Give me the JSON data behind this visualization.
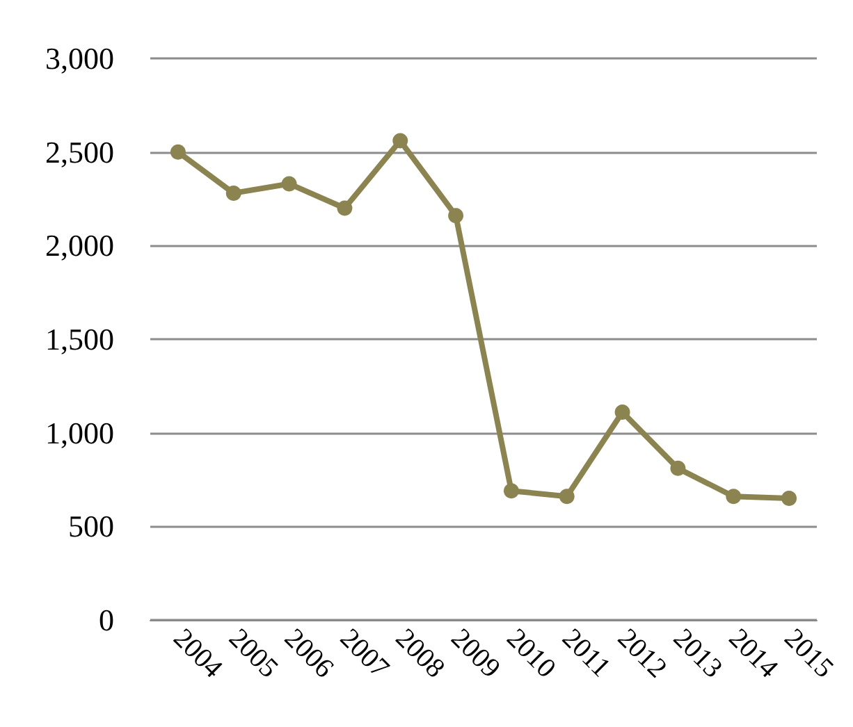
{
  "chart_data": {
    "type": "line",
    "categories": [
      "2004",
      "2005",
      "2006",
      "2007",
      "2008",
      "2009",
      "2010",
      "2011",
      "2012",
      "2013",
      "2014",
      "2015"
    ],
    "series": [
      {
        "color": "#8c8450",
        "values": [
          2500,
          2280,
          2330,
          2200,
          2560,
          2160,
          690,
          660,
          1110,
          810,
          660,
          650
        ]
      }
    ],
    "ylim": [
      0,
      3000
    ],
    "yticks": [
      {
        "value": 0,
        "label": "0"
      },
      {
        "value": 500,
        "label": "500"
      },
      {
        "value": 1000,
        "label": "1,000"
      },
      {
        "value": 1500,
        "label": "1,500"
      },
      {
        "value": 2000,
        "label": "2,000"
      },
      {
        "value": 2500,
        "label": "2,500"
      },
      {
        "value": 3000,
        "label": "3,000"
      }
    ],
    "grid": "y",
    "marker": "circle",
    "line_style": "solid"
  }
}
